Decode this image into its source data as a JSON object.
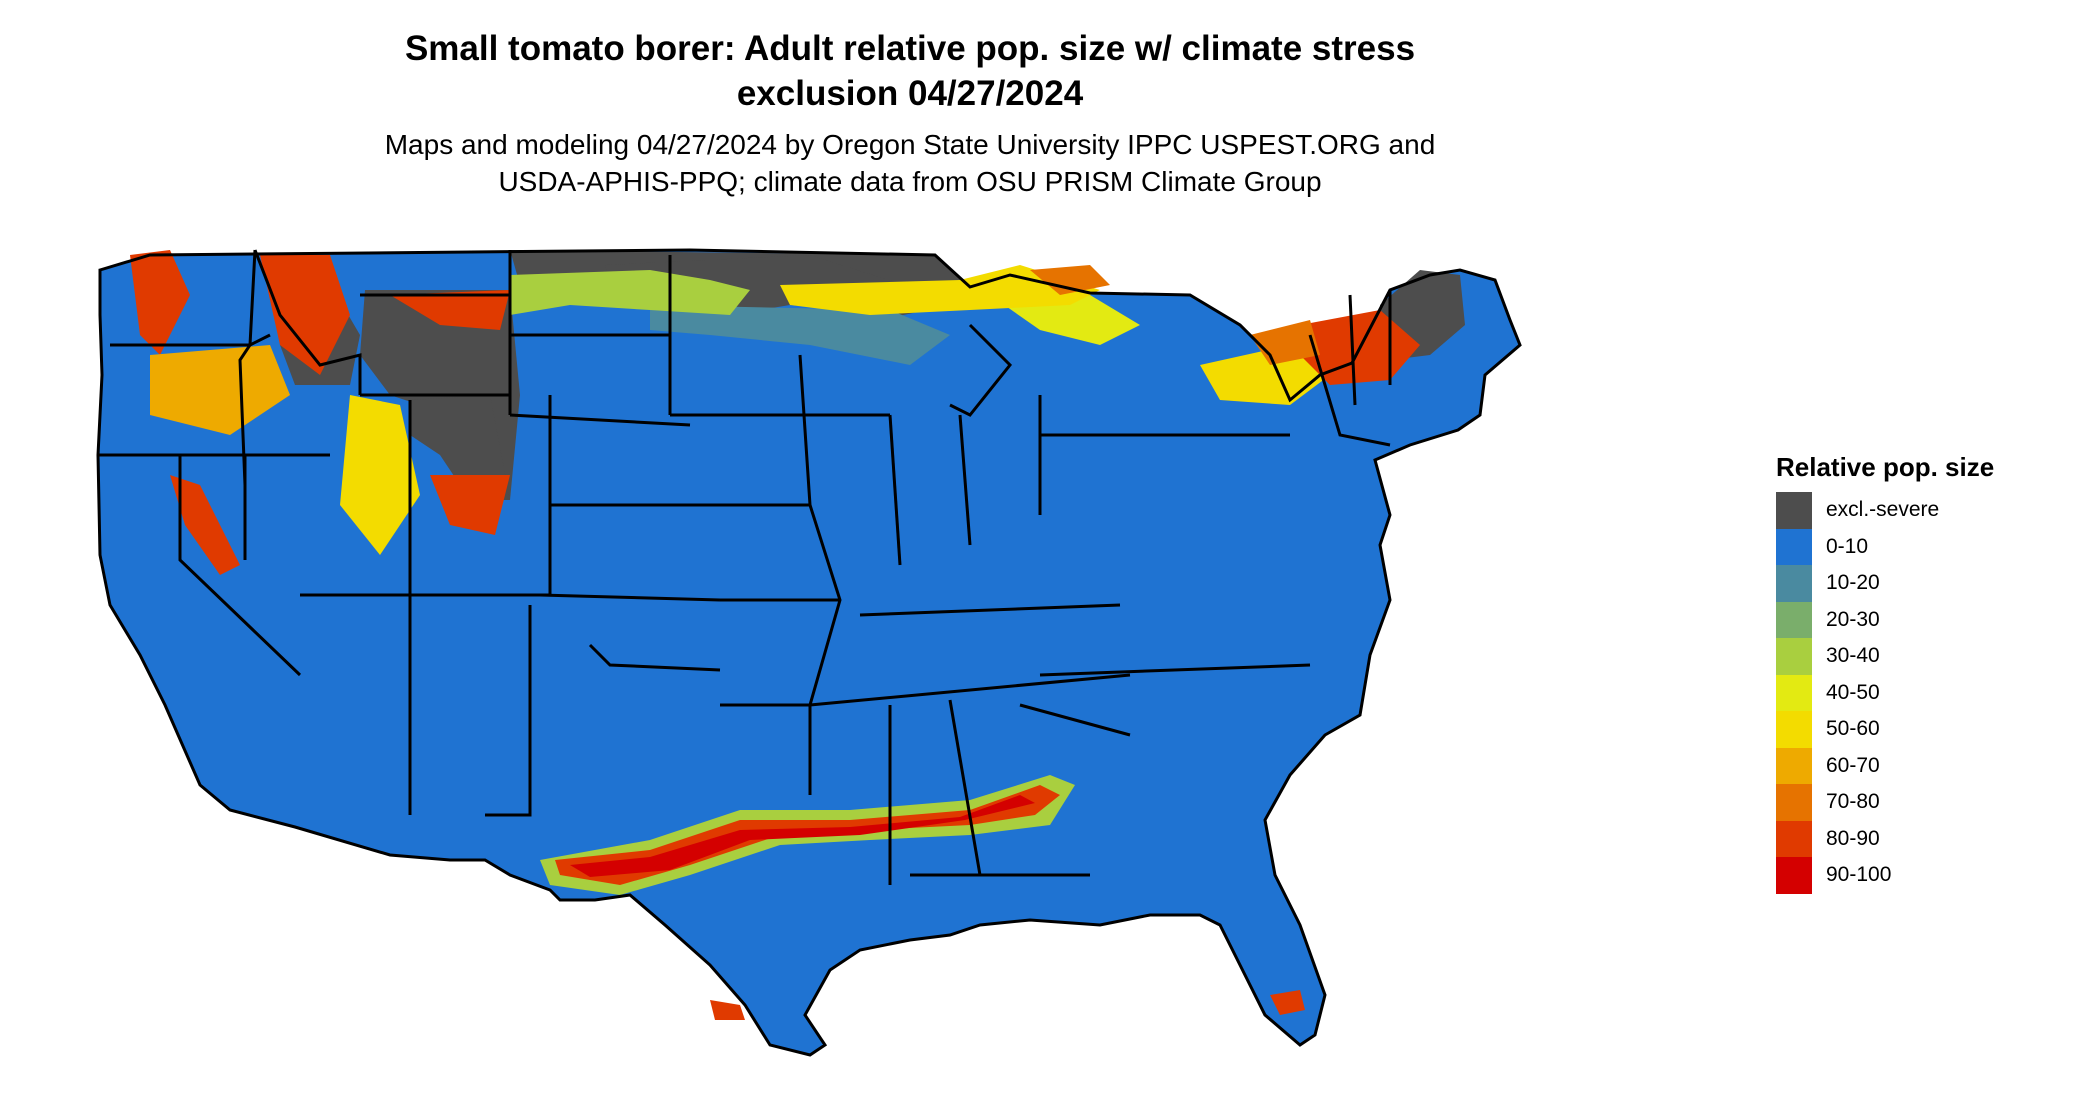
{
  "title_line1": "Small tomato borer: Adult relative pop. size w/ climate stress",
  "title_line2": "exclusion 04/27/2024",
  "subtitle_line1": "Maps and modeling 04/27/2024 by Oregon State University IPPC USPEST.ORG and",
  "subtitle_line2": "USDA-APHIS-PPQ; climate data from OSU PRISM Climate Group",
  "legend": {
    "title": "Relative pop. size",
    "items": [
      {
        "label": "excl.-severe",
        "color": "#4d4d4d"
      },
      {
        "label": "0-10",
        "color": "#1f73d2"
      },
      {
        "label": "10-20",
        "color": "#4a8aa0"
      },
      {
        "label": "20-30",
        "color": "#7aae6b"
      },
      {
        "label": "30-40",
        "color": "#a9cf3f"
      },
      {
        "label": "40-50",
        "color": "#e3ea12"
      },
      {
        "label": "50-60",
        "color": "#f3dc00"
      },
      {
        "label": "60-70",
        "color": "#eeaa00"
      },
      {
        "label": "70-80",
        "color": "#e67300"
      },
      {
        "label": "80-90",
        "color": "#e03a00"
      },
      {
        "label": "90-100",
        "color": "#d40000"
      }
    ]
  },
  "map_colors": {
    "water_background": "#ffffff",
    "state_border": "#000000"
  }
}
